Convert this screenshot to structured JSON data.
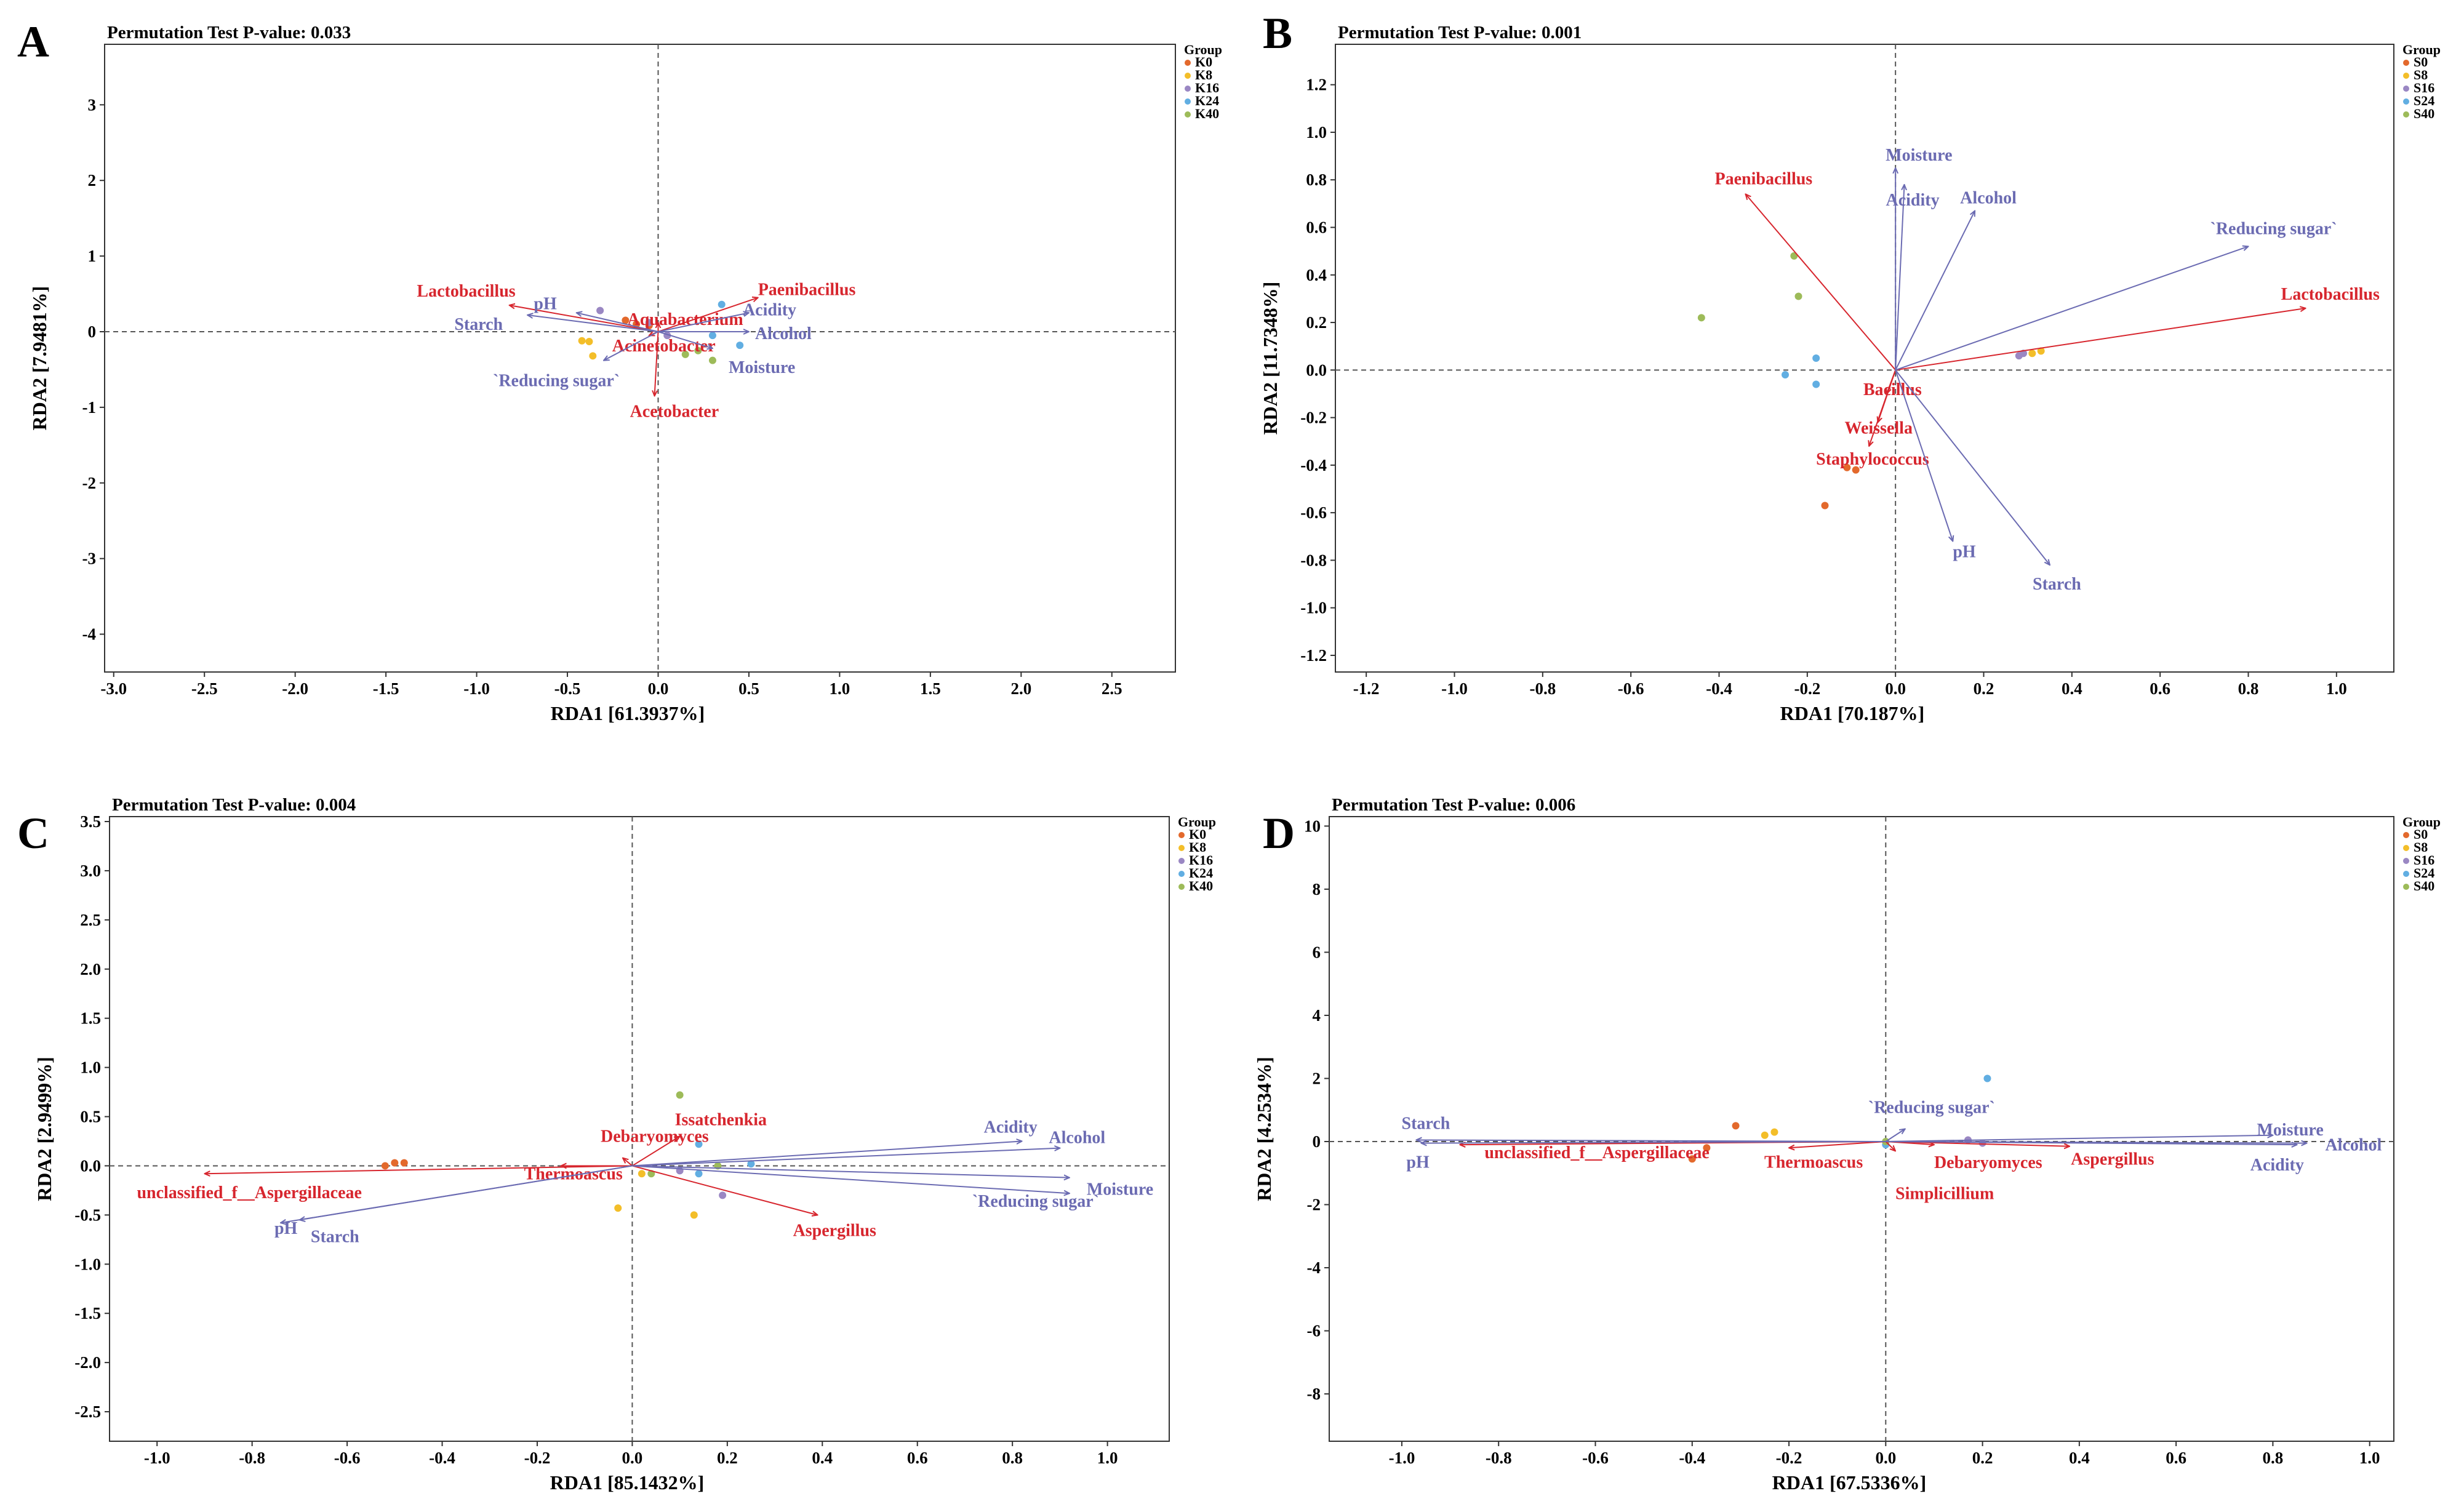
{
  "colors": {
    "env": "#6B6BB2",
    "species": "#D7262E",
    "groups": [
      "#E3692C",
      "#F3BE29",
      "#9A87C3",
      "#61AEE2",
      "#9DBB59"
    ]
  },
  "chart_data": [
    {
      "letter": "A",
      "type": "scatter",
      "title": "Permutation Test P-value: 0.033",
      "xlabel": "RDA1 [61.3937%]",
      "ylabel": "RDA2 [7.9481%]",
      "xlim": [
        -3.05,
        2.85
      ],
      "ylim": [
        -4.5,
        3.8
      ],
      "xticks": [
        "-3.0",
        "-2.5",
        "-2.0",
        "-1.5",
        "-1.0",
        "-0.5",
        "0.0",
        "0.5",
        "1.0",
        "1.5",
        "2.0",
        "2.5"
      ],
      "yticks": [
        "-4",
        "-3",
        "-2",
        "-1",
        "0",
        "1",
        "2",
        "3"
      ],
      "legend": {
        "title": "Group",
        "entries": [
          "K0",
          "K8",
          "K16",
          "K24",
          "K40"
        ],
        "position": "top-right"
      },
      "points": [
        {
          "g": 0,
          "x": -0.18,
          "y": 0.15
        },
        {
          "g": 0,
          "x": -0.12,
          "y": 0.1
        },
        {
          "g": 0,
          "x": -0.05,
          "y": 0.08
        },
        {
          "g": 1,
          "x": -0.42,
          "y": -0.12
        },
        {
          "g": 1,
          "x": -0.38,
          "y": -0.13
        },
        {
          "g": 1,
          "x": -0.36,
          "y": -0.32
        },
        {
          "g": 2,
          "x": -0.32,
          "y": 0.28
        },
        {
          "g": 2,
          "x": -0.05,
          "y": 0.12
        },
        {
          "g": 2,
          "x": 0.05,
          "y": -0.05
        },
        {
          "g": 3,
          "x": 0.35,
          "y": 0.36
        },
        {
          "g": 3,
          "x": 0.3,
          "y": -0.05
        },
        {
          "g": 3,
          "x": 0.45,
          "y": -0.18
        },
        {
          "g": 4,
          "x": 0.22,
          "y": -0.25
        },
        {
          "g": 4,
          "x": 0.3,
          "y": -0.38
        },
        {
          "g": 4,
          "x": 0.15,
          "y": -0.3
        }
      ],
      "env_arrows": [
        {
          "label": "pH",
          "x": -0.45,
          "y": 0.25
        },
        {
          "label": "Starch",
          "x": -0.72,
          "y": 0.22
        },
        {
          "label": "`Reducing sugar`",
          "x": -0.3,
          "y": -0.38
        },
        {
          "label": "Moisture",
          "x": 0.3,
          "y": -0.22
        },
        {
          "label": "Acidity",
          "x": 0.5,
          "y": 0.25
        },
        {
          "label": "Alcohol",
          "x": 0.5,
          "y": 0.0
        }
      ],
      "species_arrows": [
        {
          "label": "Lactobacillus",
          "x": -0.82,
          "y": 0.35
        },
        {
          "label": "Aquabacterium",
          "x": 0.0,
          "y": 0.12
        },
        {
          "label": "Acinetobacter",
          "x": -0.05,
          "y": -0.05
        },
        {
          "label": "Paenibacillus",
          "x": 0.55,
          "y": 0.45
        },
        {
          "label": "Acetobacter",
          "x": -0.02,
          "y": -0.85
        }
      ]
    },
    {
      "letter": "B",
      "type": "scatter",
      "title": "Permutation Test P-value: 0.001",
      "xlabel": "RDA1 [70.187%]",
      "ylabel": "RDA2 [11.7348%]",
      "xlim": [
        -1.27,
        1.13
      ],
      "ylim": [
        -1.27,
        1.37
      ],
      "xticks": [
        "-1.2",
        "-1.0",
        "-0.8",
        "-0.6",
        "-0.4",
        "-0.2",
        "0.0",
        "0.2",
        "0.4",
        "0.6",
        "0.8",
        "1.0"
      ],
      "yticks": [
        "-1.2",
        "-1.0",
        "-0.8",
        "-0.6",
        "-0.4",
        "-0.2",
        "0.0",
        "0.2",
        "0.4",
        "0.6",
        "0.8",
        "1.0",
        "1.2"
      ],
      "legend": {
        "title": "Group",
        "entries": [
          "S0",
          "S8",
          "S16",
          "S24",
          "S40"
        ],
        "position": "top-right"
      },
      "points": [
        {
          "g": 0,
          "x": -0.11,
          "y": -0.41
        },
        {
          "g": 0,
          "x": -0.09,
          "y": -0.42
        },
        {
          "g": 0,
          "x": -0.16,
          "y": -0.57
        },
        {
          "g": 1,
          "x": 0.33,
          "y": 0.08
        },
        {
          "g": 1,
          "x": 0.31,
          "y": 0.07
        },
        {
          "g": 2,
          "x": 0.28,
          "y": 0.06
        },
        {
          "g": 2,
          "x": 0.29,
          "y": 0.07
        },
        {
          "g": 3,
          "x": -0.18,
          "y": 0.05
        },
        {
          "g": 3,
          "x": -0.25,
          "y": -0.02
        },
        {
          "g": 3,
          "x": -0.18,
          "y": -0.06
        },
        {
          "g": 4,
          "x": -0.23,
          "y": 0.48
        },
        {
          "g": 4,
          "x": -0.22,
          "y": 0.31
        },
        {
          "g": 4,
          "x": -0.44,
          "y": 0.22
        }
      ],
      "env_arrows": [
        {
          "label": "Moisture",
          "x": 0.0,
          "y": 0.85
        },
        {
          "label": "Acidity",
          "x": 0.02,
          "y": 0.78
        },
        {
          "label": "Alcohol",
          "x": 0.18,
          "y": 0.67
        },
        {
          "label": "`Reducing sugar`",
          "x": 0.8,
          "y": 0.52
        },
        {
          "label": "pH",
          "x": 0.13,
          "y": -0.72
        },
        {
          "label": "Starch",
          "x": 0.35,
          "y": -0.82
        }
      ],
      "species_arrows": [
        {
          "label": "Paenibacillus",
          "x": -0.34,
          "y": 0.74
        },
        {
          "label": "Lactobacillus",
          "x": 0.93,
          "y": 0.26
        },
        {
          "label": "Bacillus",
          "x": -0.02,
          "y": -0.1
        },
        {
          "label": "Weissella",
          "x": -0.04,
          "y": -0.22
        },
        {
          "label": "Staphylococcus",
          "x": -0.06,
          "y": -0.32
        }
      ]
    },
    {
      "letter": "C",
      "type": "scatter",
      "title": "Permutation Test P-value: 0.004",
      "xlabel": "RDA1 [85.1432%]",
      "ylabel": "RDA2 [2.9499%]",
      "xlim": [
        -1.1,
        1.13
      ],
      "ylim": [
        -2.8,
        3.55
      ],
      "xticks": [
        "-1.0",
        "-0.8",
        "-0.6",
        "-0.4",
        "-0.2",
        "0.0",
        "0.2",
        "0.4",
        "0.6",
        "0.8",
        "1.0"
      ],
      "yticks": [
        "-2.5",
        "-2.0",
        "-1.5",
        "-1.0",
        "-0.5",
        "0.0",
        "0.5",
        "1.0",
        "1.5",
        "2.0",
        "2.5",
        "3.0",
        "3.5"
      ],
      "legend": {
        "title": "Group",
        "entries": [
          "K0",
          "K8",
          "K16",
          "K24",
          "K40"
        ],
        "position": "top-right"
      },
      "points": [
        {
          "g": 0,
          "x": -0.5,
          "y": 0.03
        },
        {
          "g": 0,
          "x": -0.48,
          "y": 0.03
        },
        {
          "g": 0,
          "x": -0.52,
          "y": 0.0
        },
        {
          "g": 1,
          "x": -0.03,
          "y": -0.43
        },
        {
          "g": 1,
          "x": 0.13,
          "y": -0.5
        },
        {
          "g": 1,
          "x": 0.02,
          "y": -0.08
        },
        {
          "g": 2,
          "x": 0.19,
          "y": -0.3
        },
        {
          "g": 2,
          "x": 0.1,
          "y": -0.05
        },
        {
          "g": 3,
          "x": 0.14,
          "y": -0.08
        },
        {
          "g": 3,
          "x": 0.14,
          "y": 0.22
        },
        {
          "g": 3,
          "x": 0.25,
          "y": 0.02
        },
        {
          "g": 4,
          "x": 0.1,
          "y": 0.72
        },
        {
          "g": 4,
          "x": 0.04,
          "y": -0.08
        },
        {
          "g": 4,
          "x": 0.18,
          "y": 0.0
        }
      ],
      "env_arrows": [
        {
          "label": "Acidity",
          "x": 0.82,
          "y": 0.25
        },
        {
          "label": "Alcohol",
          "x": 0.9,
          "y": 0.18
        },
        {
          "label": "Moisture",
          "x": 0.92,
          "y": -0.12
        },
        {
          "label": "`Reducing sugar`",
          "x": 0.92,
          "y": -0.28
        },
        {
          "label": "pH",
          "x": -0.74,
          "y": -0.58
        },
        {
          "label": "Starch",
          "x": -0.7,
          "y": -0.55
        }
      ],
      "species_arrows": [
        {
          "label": "Debaryomyces",
          "x": -0.02,
          "y": 0.08
        },
        {
          "label": "Issatchenkia",
          "x": 0.1,
          "y": 0.3
        },
        {
          "label": "Thermoascus",
          "x": -0.15,
          "y": 0.0
        },
        {
          "label": "unclassified_f__Aspergillaceae",
          "x": -0.9,
          "y": -0.08
        },
        {
          "label": "Aspergillus",
          "x": 0.39,
          "y": -0.5
        }
      ]
    },
    {
      "letter": "D",
      "type": "scatter",
      "title": "Permutation Test P-value: 0.006",
      "xlabel": "RDA1 [67.5336%]",
      "ylabel": "RDA2 [4.2534%]",
      "xlim": [
        -1.15,
        1.05
      ],
      "ylim": [
        -9.5,
        10.3
      ],
      "xticks": [
        "-1.0",
        "-0.8",
        "-0.6",
        "-0.4",
        "-0.2",
        "0.0",
        "0.2",
        "0.4",
        "0.6",
        "0.8",
        "1.0"
      ],
      "yticks": [
        "-8",
        "-6",
        "-4",
        "-2",
        "0",
        "2",
        "4",
        "6",
        "8",
        "10"
      ],
      "legend": {
        "title": "Group",
        "entries": [
          "S0",
          "S8",
          "S16",
          "S24",
          "S40"
        ],
        "position": "top-right"
      },
      "points": [
        {
          "g": 0,
          "x": -0.31,
          "y": 0.5
        },
        {
          "g": 0,
          "x": -0.37,
          "y": -0.2
        },
        {
          "g": 0,
          "x": -0.4,
          "y": -0.55
        },
        {
          "g": 1,
          "x": -0.23,
          "y": 0.3
        },
        {
          "g": 1,
          "x": -0.25,
          "y": 0.2
        },
        {
          "g": 2,
          "x": 0.17,
          "y": 0.05
        },
        {
          "g": 2,
          "x": 0.2,
          "y": -0.05
        },
        {
          "g": 3,
          "x": 0.0,
          "y": -0.1
        },
        {
          "g": 3,
          "x": 0.21,
          "y": 2.0
        },
        {
          "g": 4,
          "x": 0.0,
          "y": 0.0
        }
      ],
      "env_arrows": [
        {
          "label": "Starch",
          "x": -0.97,
          "y": 0.05
        },
        {
          "label": "pH",
          "x": -0.96,
          "y": -0.05
        },
        {
          "label": "`Reducing sugar`",
          "x": 0.04,
          "y": 0.4
        },
        {
          "label": "Moisture",
          "x": 0.8,
          "y": 0.2
        },
        {
          "label": "Alcohol",
          "x": 0.87,
          "y": -0.05
        },
        {
          "label": "Acidity",
          "x": 0.85,
          "y": -0.1
        }
      ],
      "species_arrows": [
        {
          "label": "unclassified_f__Aspergillaceae",
          "x": -0.88,
          "y": -0.1
        },
        {
          "label": "Thermoascus",
          "x": -0.2,
          "y": -0.2
        },
        {
          "label": "Simplicillium",
          "x": 0.02,
          "y": -0.3
        },
        {
          "label": "Debaryomyces",
          "x": 0.1,
          "y": -0.1
        },
        {
          "label": "Aspergillus",
          "x": 0.38,
          "y": -0.15
        }
      ]
    }
  ]
}
